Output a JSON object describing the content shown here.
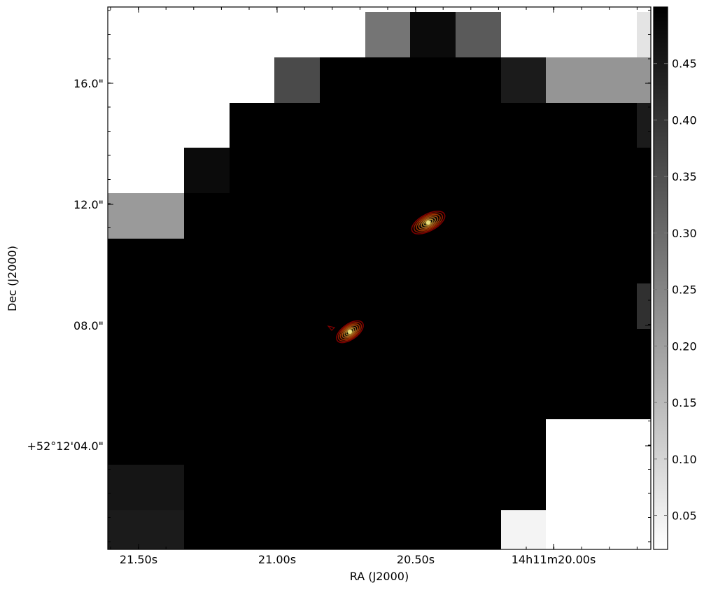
{
  "chart_data": {
    "type": "heatmap",
    "xlabel": "RA (J2000)",
    "ylabel": "Dec (J2000)",
    "x_tick_labels": [
      "21.50s",
      "21.00s",
      "20.50s",
      "14h11m20.00s"
    ],
    "y_tick_labels": [
      "16.0\"",
      "12.0\"",
      "08.0\"",
      "+52°12'04.0\""
    ],
    "colorbar": {
      "range": [
        0.02,
        0.5
      ],
      "cmap": "gray_r",
      "ticks": [
        0.05,
        0.1,
        0.15,
        0.2,
        0.25,
        0.3,
        0.35,
        0.4,
        0.45
      ],
      "tick_labels": [
        "0.05",
        "0.10",
        "0.15",
        "0.20",
        "0.25",
        "0.30",
        "0.35",
        "0.40",
        "0.45"
      ]
    },
    "grid": false,
    "pixel_values": [
      [
        0,
        0,
        0,
        0,
        0,
        0.28,
        0.48,
        0.33,
        0,
        0,
        0.07
      ],
      [
        0,
        0,
        0,
        0.36,
        0.5,
        0.5,
        0.5,
        0.5,
        0.45,
        0.22,
        0.22
      ],
      [
        0,
        0,
        0.5,
        0.5,
        0.5,
        0.5,
        0.5,
        0.5,
        0.5,
        0.5,
        0.45
      ],
      [
        0,
        0.48,
        0.5,
        0.5,
        0.5,
        0.5,
        0.5,
        0.5,
        0.5,
        0.5,
        0.5
      ],
      [
        0.21,
        0.5,
        0.5,
        0.5,
        0.5,
        0.5,
        0.5,
        0.5,
        0.5,
        0.5,
        0.5
      ],
      [
        0.5,
        0.5,
        0.5,
        0.5,
        0.5,
        0.5,
        0.5,
        0.5,
        0.5,
        0.5,
        0.5
      ],
      [
        0.5,
        0.5,
        0.5,
        0.5,
        0.5,
        0.5,
        0.5,
        0.5,
        0.5,
        0.5,
        0.41
      ],
      [
        0.5,
        0.5,
        0.5,
        0.5,
        0.5,
        0.5,
        0.5,
        0.5,
        0.5,
        0.5,
        0.5
      ],
      [
        0.5,
        0.5,
        0.5,
        0.5,
        0.5,
        0.5,
        0.5,
        0.5,
        0.5,
        0.5,
        0.5
      ],
      [
        0.5,
        0.5,
        0.5,
        0.5,
        0.5,
        0.5,
        0.5,
        0.5,
        0.5,
        0,
        0
      ],
      [
        0.46,
        0.5,
        0.5,
        0.5,
        0.5,
        0.5,
        0.5,
        0.5,
        0.5,
        0,
        0
      ],
      [
        0.45,
        0.5,
        0.5,
        0.5,
        0.5,
        0.5,
        0.5,
        0.5,
        0.04,
        0,
        0
      ]
    ],
    "contour_sources": [
      {
        "name": "source-a",
        "center_ra_s": 20.45,
        "center_dec_arcsec": 11.5
      },
      {
        "name": "source-b",
        "center_ra_s": 20.74,
        "center_dec_arcsec": 7.8
      }
    ],
    "contour_colors": [
      "#7a0000",
      "#8a1a00",
      "#993300",
      "#a04a10",
      "#a86a20",
      "#b08a30",
      "#b0a040"
    ]
  }
}
